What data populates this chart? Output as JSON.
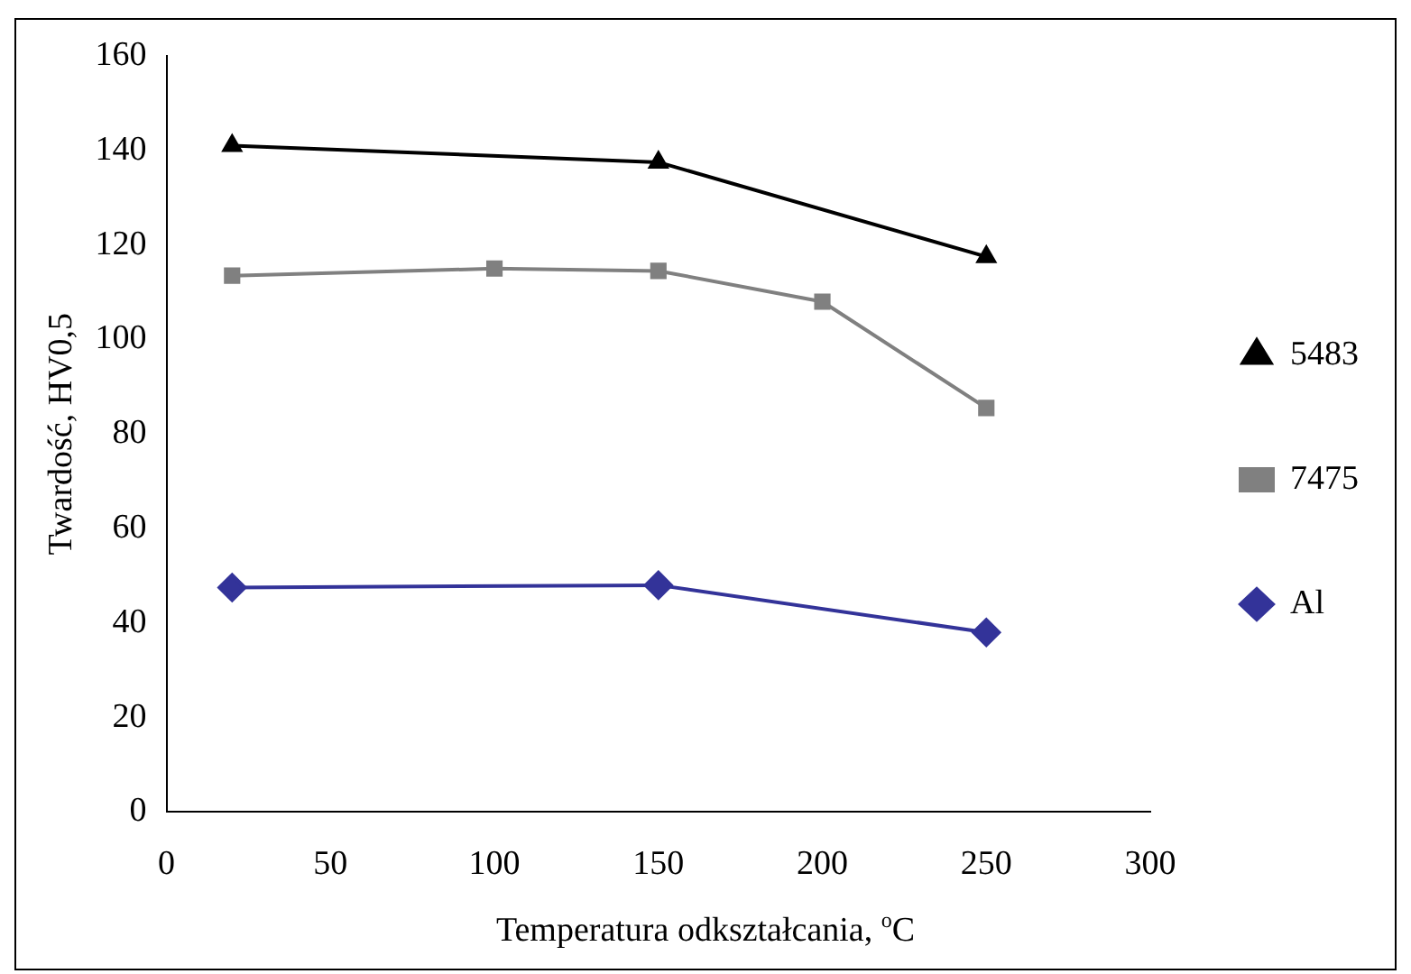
{
  "chart_data": {
    "type": "line",
    "xlabel": "Temperatura odkształcania, $^{o}$C",
    "ylabel": "Twardość, HV0,5",
    "xlim": [
      0,
      300
    ],
    "xticks": [
      0,
      50,
      100,
      150,
      200,
      250,
      300
    ],
    "ylim": [
      0,
      160
    ],
    "yticks": [
      0,
      20,
      40,
      60,
      80,
      100,
      120,
      140,
      160
    ],
    "grid": false,
    "legend": "right",
    "series": [
      {
        "name": "5483",
        "color": "#000000",
        "marker": "triangle",
        "x": [
          20,
          150,
          250
        ],
        "values": [
          141,
          137.5,
          117.5
        ]
      },
      {
        "name": "7475",
        "color": "#808080",
        "marker": "square",
        "x": [
          20,
          100,
          150,
          200,
          250
        ],
        "values": [
          113.5,
          115,
          114.5,
          108,
          85.5
        ]
      },
      {
        "name": "Al",
        "color": "#333399",
        "marker": "diamond",
        "x": [
          20,
          150,
          250
        ],
        "values": [
          47.5,
          48,
          38
        ]
      }
    ]
  }
}
